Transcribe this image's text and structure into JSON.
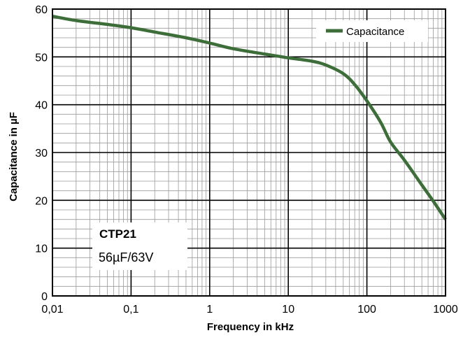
{
  "chart_data": {
    "type": "line",
    "title": "",
    "xlabel": "Frequency in kHz",
    "ylabel": "Capacitance in µF",
    "xscale": "log",
    "xlim": [
      0.01,
      1000
    ],
    "ylim": [
      0,
      60
    ],
    "x_ticks": [
      0.01,
      0.1,
      1,
      10,
      100,
      1000
    ],
    "x_tick_labels": [
      "0,01",
      "0,1",
      "1",
      "10",
      "100",
      "1000"
    ],
    "y_ticks": [
      0,
      10,
      20,
      30,
      40,
      50,
      60
    ],
    "y_tick_labels": [
      "0",
      "10",
      "20",
      "30",
      "40",
      "50",
      "60"
    ],
    "grid": true,
    "legend": {
      "placement": "top-right",
      "entries": [
        "Capacitance"
      ]
    },
    "annotation": {
      "title": "CTP21",
      "subtitle": "56µF/63V"
    },
    "series": [
      {
        "name": "Capacitance",
        "color": "#3d6e3a",
        "x": [
          0.01,
          0.02,
          0.05,
          0.1,
          0.2,
          0.5,
          1,
          2,
          5,
          10,
          20,
          30,
          50,
          70,
          100,
          150,
          200,
          300,
          500,
          700,
          1000
        ],
        "y": [
          58.5,
          57.6,
          56.8,
          56.1,
          55.2,
          54.0,
          52.9,
          51.7,
          50.6,
          49.8,
          49.1,
          48.3,
          46.5,
          44.2,
          40.8,
          36.3,
          32.2,
          28.4,
          23.2,
          19.8,
          16.0
        ]
      }
    ]
  }
}
